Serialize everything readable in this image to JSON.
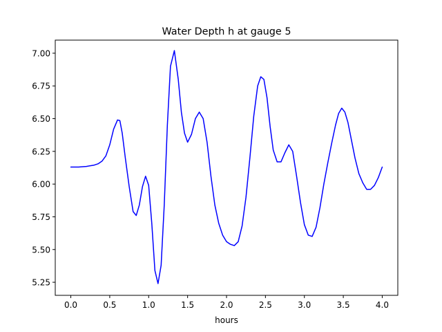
{
  "chart_data": {
    "type": "line",
    "title": "Water Depth h at gauge 5",
    "xlabel": "hours",
    "ylabel": "",
    "xlim": [
      -0.2,
      4.2
    ],
    "ylim": [
      5.15,
      7.1
    ],
    "xticks": [
      0.0,
      0.5,
      1.0,
      1.5,
      2.0,
      2.5,
      3.0,
      3.5,
      4.0
    ],
    "xtick_labels": [
      "0.0",
      "0.5",
      "1.0",
      "1.5",
      "2.0",
      "2.5",
      "3.0",
      "3.5",
      "4.0"
    ],
    "yticks": [
      5.25,
      5.5,
      5.75,
      6.0,
      6.25,
      6.5,
      6.75,
      7.0
    ],
    "ytick_labels": [
      "5.25",
      "5.50",
      "5.75",
      "6.00",
      "6.25",
      "6.50",
      "6.75",
      "7.00"
    ],
    "grid": false,
    "colors": {
      "line": "#0000ff",
      "axes": "#000000",
      "background": "#ffffff"
    },
    "series": [
      {
        "x": [
          0.0,
          0.1,
          0.2,
          0.3,
          0.35,
          0.4,
          0.45,
          0.5,
          0.55,
          0.6,
          0.63,
          0.66,
          0.7,
          0.75,
          0.8,
          0.84,
          0.88,
          0.92,
          0.96,
          1.0,
          1.04,
          1.08,
          1.12,
          1.16,
          1.2,
          1.24,
          1.28,
          1.33,
          1.38,
          1.42,
          1.46,
          1.5,
          1.55,
          1.6,
          1.65,
          1.7,
          1.75,
          1.8,
          1.85,
          1.9,
          1.95,
          2.0,
          2.05,
          2.1,
          2.15,
          2.2,
          2.25,
          2.3,
          2.35,
          2.4,
          2.44,
          2.48,
          2.52,
          2.56,
          2.6,
          2.65,
          2.7,
          2.75,
          2.8,
          2.85,
          2.9,
          2.95,
          3.0,
          3.05,
          3.1,
          3.15,
          3.2,
          3.25,
          3.3,
          3.35,
          3.4,
          3.44,
          3.48,
          3.52,
          3.56,
          3.6,
          3.65,
          3.7,
          3.75,
          3.8,
          3.85,
          3.9,
          3.95,
          4.0
        ],
        "y": [
          6.13,
          6.13,
          6.135,
          6.145,
          6.155,
          6.175,
          6.215,
          6.3,
          6.42,
          6.49,
          6.485,
          6.39,
          6.2,
          5.98,
          5.79,
          5.76,
          5.84,
          5.98,
          6.06,
          5.99,
          5.7,
          5.34,
          5.24,
          5.38,
          5.84,
          6.45,
          6.9,
          7.02,
          6.8,
          6.55,
          6.39,
          6.32,
          6.38,
          6.5,
          6.55,
          6.5,
          6.32,
          6.06,
          5.84,
          5.7,
          5.61,
          5.56,
          5.54,
          5.53,
          5.56,
          5.68,
          5.9,
          6.2,
          6.52,
          6.75,
          6.82,
          6.8,
          6.66,
          6.44,
          6.26,
          6.17,
          6.17,
          6.24,
          6.3,
          6.25,
          6.06,
          5.86,
          5.69,
          5.61,
          5.6,
          5.67,
          5.82,
          6.0,
          6.16,
          6.31,
          6.45,
          6.54,
          6.58,
          6.55,
          6.47,
          6.35,
          6.2,
          6.08,
          6.01,
          5.96,
          5.96,
          5.99,
          6.05,
          6.13
        ]
      }
    ]
  }
}
